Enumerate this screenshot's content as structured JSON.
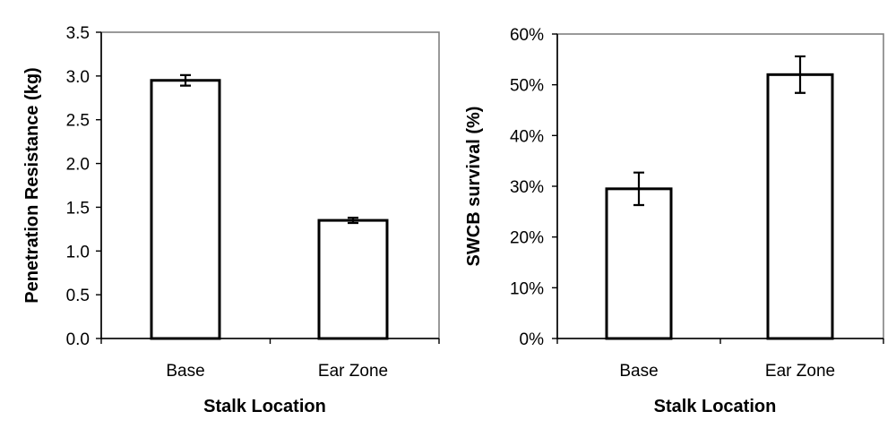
{
  "chart_data": [
    {
      "type": "bar",
      "categories": [
        "Base",
        "Ear Zone"
      ],
      "values": [
        2.95,
        1.35
      ],
      "error": [
        0.06,
        0.03
      ],
      "ylabel": "Penetration Resistance (kg)",
      "xlabel": "Stalk Location",
      "ylim": [
        0,
        3.5
      ],
      "yticks": [
        0.0,
        0.5,
        1.0,
        1.5,
        2.0,
        2.5,
        3.0,
        3.5
      ],
      "ytick_labels": [
        "0.0",
        "0.5",
        "1.0",
        "1.5",
        "2.0",
        "2.5",
        "3.0",
        "3.5"
      ],
      "grid": false,
      "bar_fill": "#ffffff",
      "bar_stroke": "#000000",
      "frame_color": "#808080"
    },
    {
      "type": "bar",
      "categories": [
        "Base",
        "Ear Zone"
      ],
      "values": [
        29.5,
        52.0
      ],
      "error": [
        3.2,
        3.6
      ],
      "ylabel": "SWCB survival (%)",
      "xlabel": "Stalk Location",
      "ylim": [
        0,
        60
      ],
      "yticks": [
        0,
        10,
        20,
        30,
        40,
        50,
        60
      ],
      "ytick_labels": [
        "0%",
        "10%",
        "20%",
        "30%",
        "40%",
        "50%",
        "60%"
      ],
      "grid": false,
      "bar_fill": "#ffffff",
      "bar_stroke": "#000000",
      "frame_color": "#808080"
    }
  ]
}
